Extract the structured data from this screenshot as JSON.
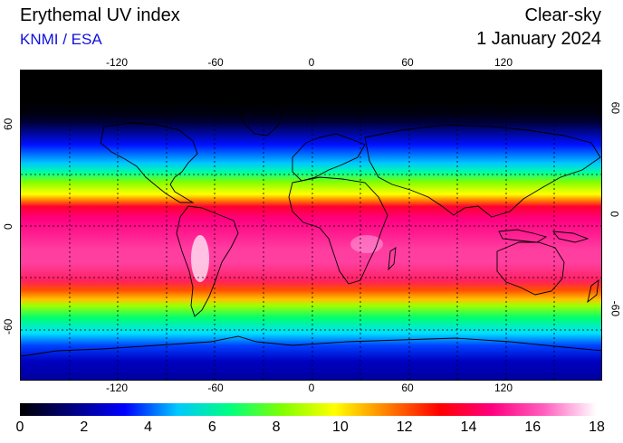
{
  "header": {
    "title": "Erythemal UV index",
    "credit": "KNMI / ESA",
    "condition": "Clear-sky",
    "date": "1 January 2024"
  },
  "map": {
    "lon_ticks_top": [
      "-120",
      "-60",
      "0",
      "60",
      "120"
    ],
    "lon_ticks_bottom": [
      "-120",
      "-60",
      "0",
      "60",
      "120"
    ],
    "lat_ticks_left": [
      "60",
      "0",
      "-60"
    ],
    "lat_ticks_right": [
      "60",
      "0",
      "-60"
    ],
    "lon_range": [
      -180,
      180
    ],
    "lat_range": [
      -90,
      90
    ],
    "grid": "dashed every 30 degrees"
  },
  "colorbar": {
    "min": 0,
    "max": 18,
    "labels": [
      "0",
      "2",
      "4",
      "6",
      "8",
      "10",
      "12",
      "14",
      "16",
      "18"
    ],
    "colors": [
      "#000000",
      "#000080",
      "#0000ff",
      "#00c8ff",
      "#00ff80",
      "#80ff00",
      "#ffff00",
      "#ff8000",
      "#ff0000",
      "#ff0080",
      "#ff60c0",
      "#ffffff"
    ]
  }
}
